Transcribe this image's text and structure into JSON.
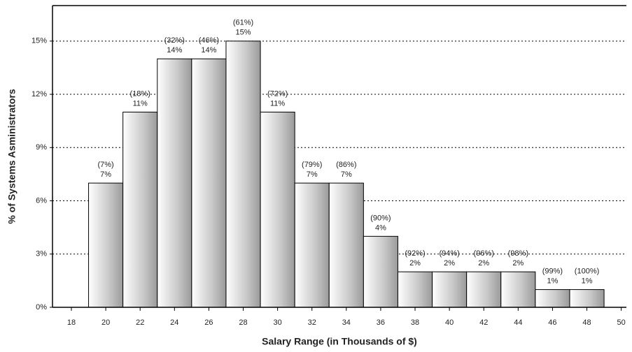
{
  "chart_data": {
    "type": "histogram",
    "xlabel": "Salary Range (in Thousands of $)",
    "ylabel": "% of Systems Asministrators",
    "bins": [
      19,
      21,
      23,
      25,
      27,
      29,
      31,
      33,
      35,
      37,
      39,
      41,
      43,
      45,
      47,
      49
    ],
    "values": [
      7,
      11,
      14,
      14,
      15,
      11,
      7,
      7,
      4,
      2,
      2,
      2,
      2,
      1,
      1
    ],
    "value_labels": [
      "7%",
      "11%",
      "14%",
      "14%",
      "15%",
      "11%",
      "7%",
      "7%",
      "4%",
      "2%",
      "2%",
      "2%",
      "2%",
      "1%",
      "1%"
    ],
    "cumulative_labels": [
      "(7%)",
      "(18%)",
      "(32%)",
      "(46%)",
      "(61%)",
      "(72%)",
      "(79%)",
      "(86%)",
      "(90%)",
      "(92%)",
      "(94%)",
      "(96%)",
      "(98%)",
      "(99%)",
      "(100%)"
    ],
    "xlim": [
      16.9,
      50.3
    ],
    "xticks": [
      18,
      20,
      22,
      24,
      26,
      28,
      30,
      32,
      34,
      36,
      38,
      40,
      42,
      44,
      46,
      48,
      50
    ],
    "ylim": [
      0,
      17
    ],
    "yticks": [
      {
        "value": 0,
        "label": "0%"
      },
      {
        "value": 3,
        "label": "3%"
      },
      {
        "value": 6,
        "label": "6%"
      },
      {
        "value": 9,
        "label": "9%"
      },
      {
        "value": 12,
        "label": "12%"
      },
      {
        "value": 15,
        "label": "15%"
      }
    ],
    "grid": true,
    "color": "#b8b8b8"
  }
}
